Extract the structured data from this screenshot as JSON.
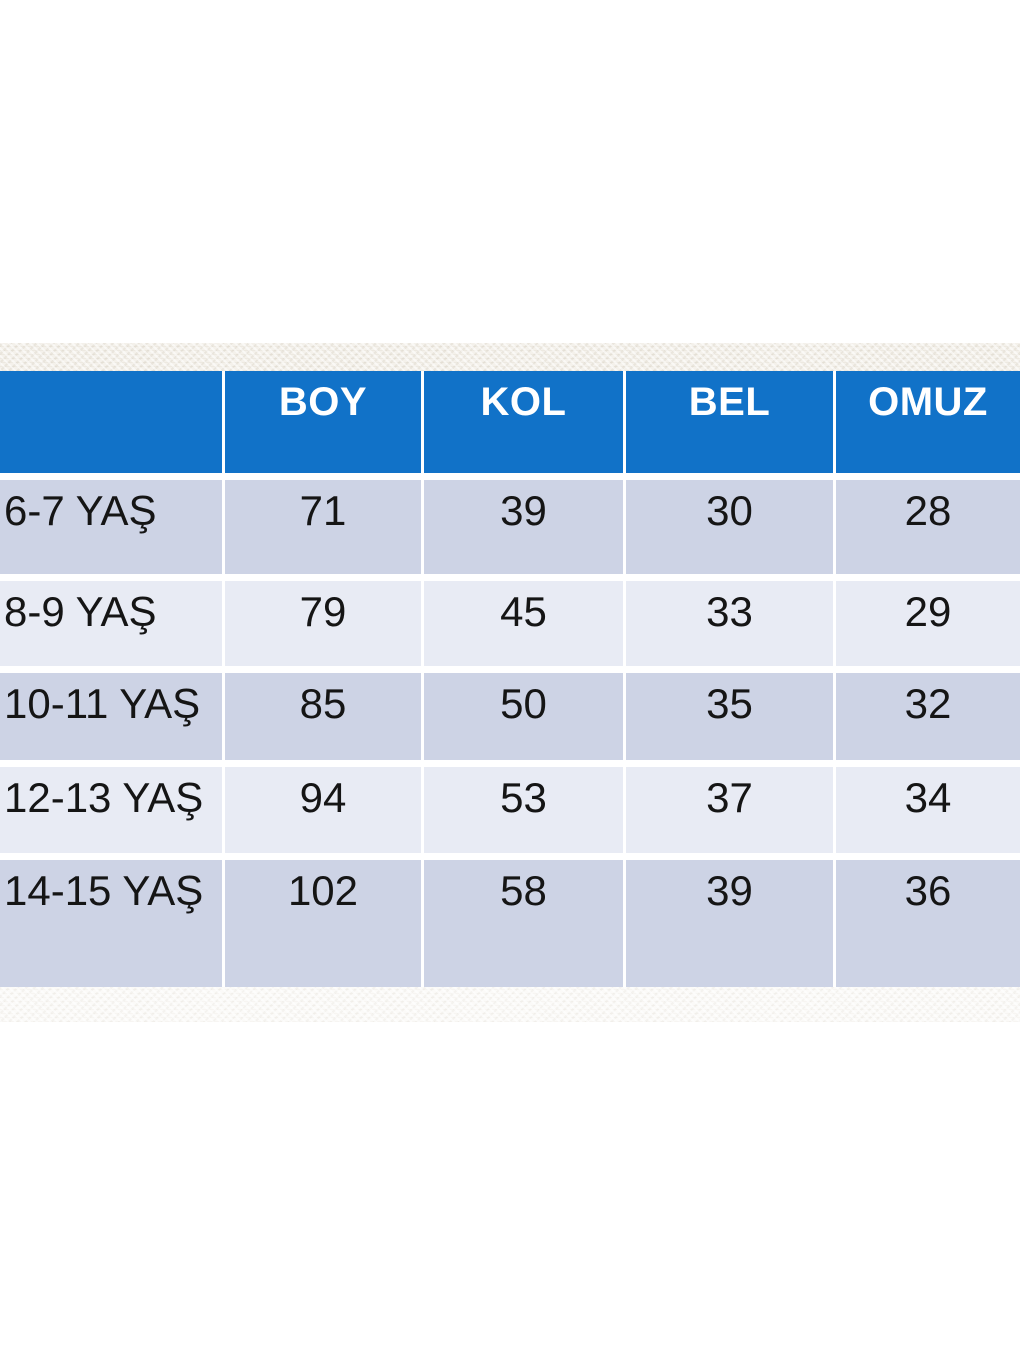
{
  "table": {
    "header": [
      "",
      "BOY",
      "KOL",
      "BEL",
      "OMUZ"
    ],
    "rows": [
      {
        "label": "6-7 YAŞ",
        "values": [
          "71",
          "39",
          "30",
          "28"
        ]
      },
      {
        "label": "8-9 YAŞ",
        "values": [
          "79",
          "45",
          "33",
          "29"
        ]
      },
      {
        "label": "10-11 YAŞ",
        "values": [
          "85",
          "50",
          "35",
          "32"
        ]
      },
      {
        "label": "12-13 YAŞ",
        "values": [
          "94",
          "53",
          "37",
          "34"
        ]
      },
      {
        "label": "14-15 YAŞ",
        "values": [
          "102",
          "58",
          "39",
          "36"
        ]
      }
    ]
  },
  "colors": {
    "header_background": "#1172c8",
    "header_text": "#ffffff",
    "row_dark": "#cdd3e5",
    "row_light": "#e8ebf4",
    "cell_text": "#151515",
    "separator": "#ffffff",
    "texture_top_base": "#f4f1eb",
    "texture_bottom_base": "#fbfaf8"
  },
  "chart_data": {
    "type": "table",
    "title": "",
    "columns": [
      "",
      "BOY",
      "KOL",
      "BEL",
      "OMUZ"
    ],
    "rows": [
      [
        "6-7 YAŞ",
        71,
        39,
        30,
        28
      ],
      [
        "8-9 YAŞ",
        79,
        45,
        33,
        29
      ],
      [
        "10-11 YAŞ",
        85,
        50,
        35,
        32
      ],
      [
        "12-13 YAŞ",
        94,
        53,
        37,
        34
      ],
      [
        "14-15 YAŞ",
        102,
        58,
        39,
        36
      ]
    ],
    "layout_hints": {
      "header_position": "top",
      "first_column_role": "age-range row labels",
      "units": "cm (implied, not shown)",
      "alternating_row_shading": true
    }
  }
}
